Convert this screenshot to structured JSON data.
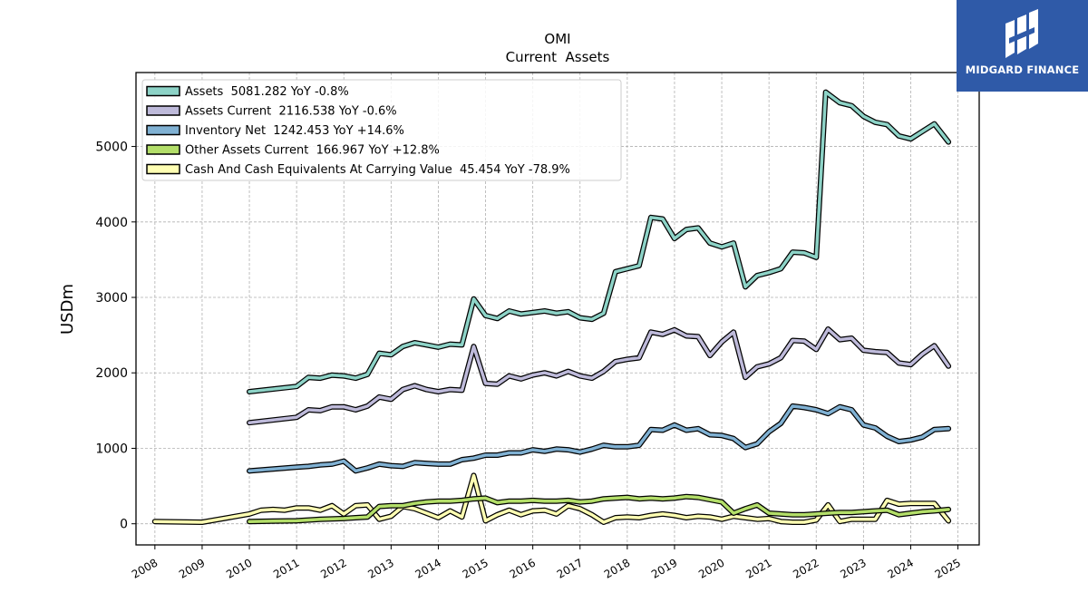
{
  "chart_data": {
    "type": "line",
    "title": "OMI",
    "subtitle": "Current  Assets",
    "ylabel": "USDm",
    "xlabel": "",
    "xlim": [
      2007.6,
      2025.45
    ],
    "ylim": [
      -280,
      5980
    ],
    "x_ticks": [
      "2008",
      "2009",
      "2010",
      "2011",
      "2012",
      "2013",
      "2014",
      "2015",
      "2016",
      "2017",
      "2018",
      "2019",
      "2020",
      "2021",
      "2022",
      "2023",
      "2024",
      "2025"
    ],
    "y_ticks": [
      "0",
      "1000",
      "2000",
      "3000",
      "4000",
      "5000"
    ],
    "grid": true,
    "legend_position": "top-left",
    "series": [
      {
        "name": "Assets",
        "legend": "Assets  5081.282 YoY -0.8%",
        "color": "#8dd3c7",
        "x": [
          2010.0,
          2011.0,
          2011.25,
          2011.5,
          2011.75,
          2012.0,
          2012.25,
          2012.5,
          2012.75,
          2013.0,
          2013.25,
          2013.5,
          2013.75,
          2014.0,
          2014.25,
          2014.5,
          2014.75,
          2015.0,
          2015.25,
          2015.5,
          2015.75,
          2016.0,
          2016.25,
          2016.5,
          2016.75,
          2017.0,
          2017.25,
          2017.5,
          2017.75,
          2018.0,
          2018.25,
          2018.5,
          2018.75,
          2019.0,
          2019.25,
          2019.5,
          2019.75,
          2020.0,
          2020.25,
          2020.5,
          2020.75,
          2021.0,
          2021.25,
          2021.5,
          2021.75,
          2022.0,
          2022.2,
          2022.5,
          2022.75,
          2023.0,
          2023.25,
          2023.5,
          2023.75,
          2024.0,
          2024.25,
          2024.5,
          2024.8
        ],
        "y": [
          1750,
          1820,
          1940,
          1930,
          1970,
          1960,
          1930,
          1980,
          2260,
          2240,
          2350,
          2400,
          2370,
          2340,
          2380,
          2370,
          2980,
          2760,
          2720,
          2820,
          2780,
          2800,
          2820,
          2790,
          2810,
          2730,
          2710,
          2790,
          3340,
          3380,
          3420,
          4060,
          4040,
          3780,
          3900,
          3920,
          3720,
          3670,
          3720,
          3140,
          3290,
          3330,
          3380,
          3600,
          3590,
          3530,
          5720,
          5580,
          5540,
          5400,
          5320,
          5290,
          5140,
          5100,
          5200,
          5300,
          5060
        ]
      },
      {
        "name": "Assets Current",
        "legend": "Assets Current  2116.538 YoY -0.6%",
        "color": "#bebada",
        "x": [
          2010.0,
          2011.0,
          2011.25,
          2011.5,
          2011.75,
          2012.0,
          2012.25,
          2012.5,
          2012.75,
          2013.0,
          2013.25,
          2013.5,
          2013.75,
          2014.0,
          2014.25,
          2014.5,
          2014.75,
          2015.0,
          2015.25,
          2015.5,
          2015.75,
          2016.0,
          2016.25,
          2016.5,
          2016.75,
          2017.0,
          2017.25,
          2017.5,
          2017.75,
          2018.0,
          2018.25,
          2018.5,
          2018.75,
          2019.0,
          2019.25,
          2019.5,
          2019.75,
          2020.0,
          2020.25,
          2020.5,
          2020.75,
          2021.0,
          2021.25,
          2021.5,
          2021.75,
          2022.0,
          2022.25,
          2022.5,
          2022.75,
          2023.0,
          2023.25,
          2023.5,
          2023.75,
          2024.0,
          2024.25,
          2024.5,
          2024.8
        ],
        "y": [
          1340,
          1410,
          1510,
          1500,
          1550,
          1550,
          1510,
          1560,
          1680,
          1650,
          1780,
          1830,
          1780,
          1750,
          1780,
          1770,
          2350,
          1860,
          1850,
          1960,
          1920,
          1970,
          2000,
          1960,
          2020,
          1960,
          1930,
          2020,
          2150,
          2180,
          2200,
          2540,
          2510,
          2570,
          2490,
          2480,
          2230,
          2410,
          2540,
          1940,
          2080,
          2120,
          2200,
          2430,
          2420,
          2310,
          2580,
          2440,
          2460,
          2300,
          2280,
          2270,
          2130,
          2110,
          2250,
          2360,
          2090
        ]
      },
      {
        "name": "Inventory Net",
        "legend": "Inventory Net  1242.453 YoY +14.6%",
        "color": "#80b1d3",
        "x": [
          2010.0,
          2011.0,
          2011.25,
          2011.5,
          2011.75,
          2012.0,
          2012.25,
          2012.5,
          2012.75,
          2013.0,
          2013.25,
          2013.5,
          2013.75,
          2014.0,
          2014.25,
          2014.5,
          2014.75,
          2015.0,
          2015.25,
          2015.5,
          2015.75,
          2016.0,
          2016.25,
          2016.5,
          2016.75,
          2017.0,
          2017.25,
          2017.5,
          2017.75,
          2018.0,
          2018.25,
          2018.5,
          2018.75,
          2019.0,
          2019.25,
          2019.5,
          2019.75,
          2020.0,
          2020.25,
          2020.5,
          2020.75,
          2021.0,
          2021.25,
          2021.5,
          2021.75,
          2022.0,
          2022.25,
          2022.5,
          2022.75,
          2023.0,
          2023.25,
          2023.5,
          2023.75,
          2024.0,
          2024.25,
          2024.5,
          2024.8
        ],
        "y": [
          700,
          750,
          760,
          780,
          790,
          830,
          700,
          740,
          790,
          770,
          760,
          810,
          800,
          790,
          790,
          850,
          870,
          910,
          910,
          940,
          940,
          980,
          960,
          990,
          980,
          950,
          990,
          1040,
          1020,
          1020,
          1040,
          1250,
          1240,
          1310,
          1240,
          1260,
          1180,
          1170,
          1130,
          1010,
          1060,
          1220,
          1330,
          1560,
          1540,
          1510,
          1460,
          1550,
          1510,
          1310,
          1270,
          1160,
          1090,
          1110,
          1150,
          1250,
          1260
        ]
      },
      {
        "name": "Other Assets Current",
        "legend": "Other Assets Current  166.967 YoY +12.8%",
        "color": "#b3de69",
        "x": [
          2010.0,
          2010.5,
          2011.0,
          2011.5,
          2012.0,
          2012.25,
          2012.5,
          2012.75,
          2013.0,
          2013.25,
          2013.5,
          2013.75,
          2014.0,
          2014.25,
          2014.5,
          2014.75,
          2015.0,
          2015.25,
          2015.5,
          2015.75,
          2016.0,
          2016.25,
          2016.5,
          2016.75,
          2017.0,
          2017.25,
          2017.5,
          2017.75,
          2018.0,
          2018.25,
          2018.5,
          2018.75,
          2019.0,
          2019.25,
          2019.5,
          2019.75,
          2020.0,
          2020.25,
          2020.5,
          2020.75,
          2021.0,
          2021.25,
          2021.5,
          2021.75,
          2022.0,
          2022.25,
          2022.5,
          2022.75,
          2023.0,
          2023.25,
          2023.5,
          2023.75,
          2024.0,
          2024.25,
          2024.5,
          2024.8
        ],
        "y": [
          30,
          35,
          40,
          60,
          70,
          80,
          90,
          230,
          240,
          240,
          270,
          290,
          300,
          300,
          310,
          330,
          340,
          280,
          300,
          300,
          310,
          300,
          300,
          310,
          290,
          300,
          330,
          340,
          350,
          330,
          340,
          330,
          340,
          360,
          350,
          320,
          290,
          140,
          200,
          250,
          140,
          130,
          120,
          120,
          130,
          140,
          150,
          150,
          160,
          170,
          180,
          120,
          140,
          160,
          170,
          190
        ]
      },
      {
        "name": "Cash And Cash Equivalents At Carrying Value",
        "legend": "Cash And Cash Equivalents At Carrying Value  45.454 YoY -78.9%",
        "color": "#ffffb3",
        "x": [
          2008.0,
          2009.0,
          2010.0,
          2010.25,
          2010.5,
          2010.75,
          2011.0,
          2011.25,
          2011.5,
          2011.75,
          2012.0,
          2012.25,
          2012.5,
          2012.75,
          2013.0,
          2013.25,
          2013.5,
          2013.75,
          2014.0,
          2014.25,
          2014.5,
          2014.75,
          2015.0,
          2015.25,
          2015.5,
          2015.75,
          2016.0,
          2016.25,
          2016.5,
          2016.75,
          2017.0,
          2017.25,
          2017.5,
          2017.75,
          2018.0,
          2018.25,
          2018.5,
          2018.75,
          2019.0,
          2019.25,
          2019.5,
          2019.75,
          2020.0,
          2020.25,
          2020.5,
          2020.75,
          2021.0,
          2021.25,
          2021.5,
          2021.75,
          2022.0,
          2022.25,
          2022.5,
          2022.75,
          2023.0,
          2023.25,
          2023.5,
          2023.75,
          2024.0,
          2024.25,
          2024.5,
          2024.8
        ],
        "y": [
          30,
          20,
          130,
          180,
          190,
          180,
          210,
          210,
          180,
          240,
          130,
          240,
          250,
          60,
          100,
          230,
          200,
          140,
          80,
          170,
          90,
          640,
          40,
          120,
          180,
          120,
          170,
          180,
          130,
          240,
          200,
          120,
          20,
          80,
          90,
          80,
          110,
          130,
          110,
          80,
          100,
          90,
          60,
          100,
          80,
          60,
          70,
          30,
          20,
          20,
          50,
          250,
          30,
          60,
          60,
          60,
          310,
          260,
          270,
          270,
          270,
          40
        ]
      }
    ]
  },
  "logo": {
    "text": "MIDGARD FINANCE",
    "bg": "#2f5aa8"
  }
}
